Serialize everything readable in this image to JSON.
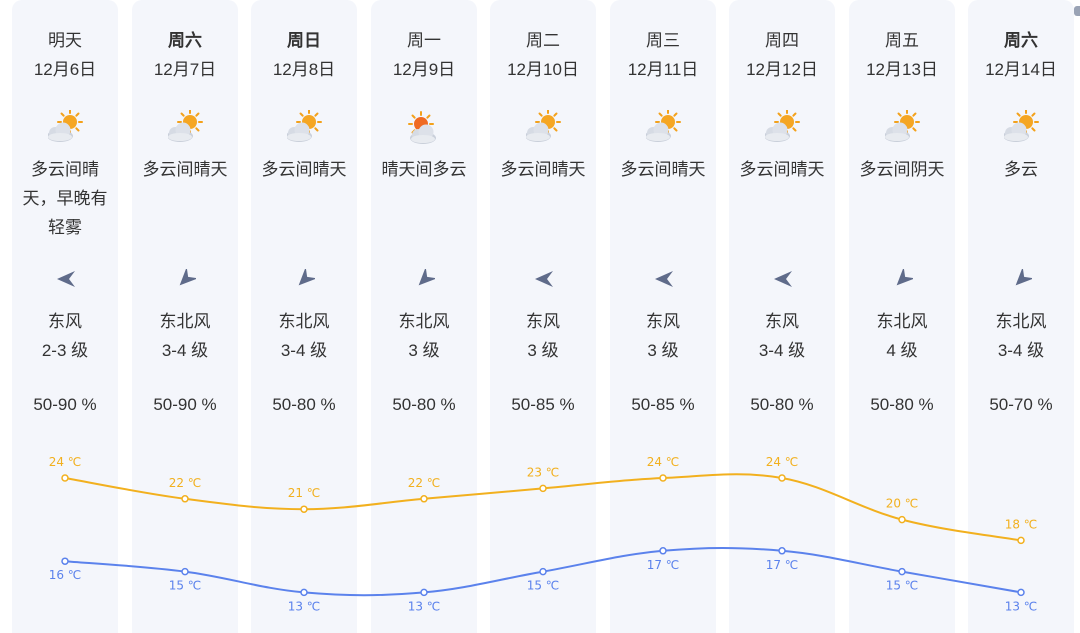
{
  "colors": {
    "column_bg": "#f4f6fb",
    "high_line": "#f2b01e",
    "low_line": "#5b82ec",
    "wind_arrow": "#5f6b8a"
  },
  "days": [
    {
      "weekday": "明天",
      "bold": false,
      "date": "12月6日",
      "icon": "partly-cloudy-icon",
      "condition": "多云间晴天，早晚有轻雾",
      "wind_dir_icon": "wind-arrow-west-icon",
      "wind": "东风",
      "wind_level": "2-3 级",
      "humidity": "50-90 %",
      "high_label": "24 ℃",
      "low_label": "16 ℃"
    },
    {
      "weekday": "周六",
      "bold": true,
      "date": "12月7日",
      "icon": "partly-cloudy-icon",
      "condition": "多云间晴天",
      "wind_dir_icon": "wind-arrow-southwest-icon",
      "wind": "东北风",
      "wind_level": "3-4 级",
      "humidity": "50-90 %",
      "high_label": "22 ℃",
      "low_label": "15 ℃"
    },
    {
      "weekday": "周日",
      "bold": true,
      "date": "12月8日",
      "icon": "partly-cloudy-icon",
      "condition": "多云间晴天",
      "wind_dir_icon": "wind-arrow-southwest-icon",
      "wind": "东北风",
      "wind_level": "3-4 级",
      "humidity": "50-80 %",
      "high_label": "21 ℃",
      "low_label": "13 ℃"
    },
    {
      "weekday": "周一",
      "bold": false,
      "date": "12月9日",
      "icon": "sunny-cloudy-icon",
      "condition": "晴天间多云",
      "wind_dir_icon": "wind-arrow-southwest-icon",
      "wind": "东北风",
      "wind_level": "3 级",
      "humidity": "50-80 %",
      "high_label": "22 ℃",
      "low_label": "13 ℃"
    },
    {
      "weekday": "周二",
      "bold": false,
      "date": "12月10日",
      "icon": "partly-cloudy-icon",
      "condition": "多云间晴天",
      "wind_dir_icon": "wind-arrow-west-icon",
      "wind": "东风",
      "wind_level": "3 级",
      "humidity": "50-85 %",
      "high_label": "23 ℃",
      "low_label": "15 ℃"
    },
    {
      "weekday": "周三",
      "bold": false,
      "date": "12月11日",
      "icon": "partly-cloudy-icon",
      "condition": "多云间晴天",
      "wind_dir_icon": "wind-arrow-west-icon",
      "wind": "东风",
      "wind_level": "3 级",
      "humidity": "50-85 %",
      "high_label": "24 ℃",
      "low_label": "17 ℃"
    },
    {
      "weekday": "周四",
      "bold": false,
      "date": "12月12日",
      "icon": "partly-cloudy-icon",
      "condition": "多云间晴天",
      "wind_dir_icon": "wind-arrow-west-icon",
      "wind": "东风",
      "wind_level": "3-4 级",
      "humidity": "50-80 %",
      "high_label": "24 ℃",
      "low_label": "17 ℃"
    },
    {
      "weekday": "周五",
      "bold": false,
      "date": "12月13日",
      "icon": "partly-cloudy-icon",
      "condition": "多云间阴天",
      "wind_dir_icon": "wind-arrow-southwest-icon",
      "wind": "东北风",
      "wind_level": "4 级",
      "humidity": "50-80 %",
      "high_label": "20 ℃",
      "low_label": "15 ℃"
    },
    {
      "weekday": "周六",
      "bold": true,
      "date": "12月14日",
      "icon": "partly-cloudy-icon",
      "condition": "多云",
      "wind_dir_icon": "wind-arrow-southwest-icon",
      "wind": "东北风",
      "wind_level": "3-4 级",
      "humidity": "50-70 %",
      "high_label": "18 ℃",
      "low_label": "13 ℃"
    }
  ],
  "chart_data": {
    "type": "line",
    "categories": [
      "12月6日",
      "12月7日",
      "12月8日",
      "12月9日",
      "12月10日",
      "12月11日",
      "12月12日",
      "12月13日",
      "12月14日"
    ],
    "series": [
      {
        "values": [
          24,
          22,
          21,
          22,
          23,
          24,
          24,
          20,
          18
        ],
        "color": "#f2b01e"
      },
      {
        "values": [
          16,
          15,
          13,
          13,
          15,
          17,
          17,
          15,
          13
        ],
        "color": "#5b82ec"
      }
    ],
    "unit": "℃",
    "grid": false
  }
}
